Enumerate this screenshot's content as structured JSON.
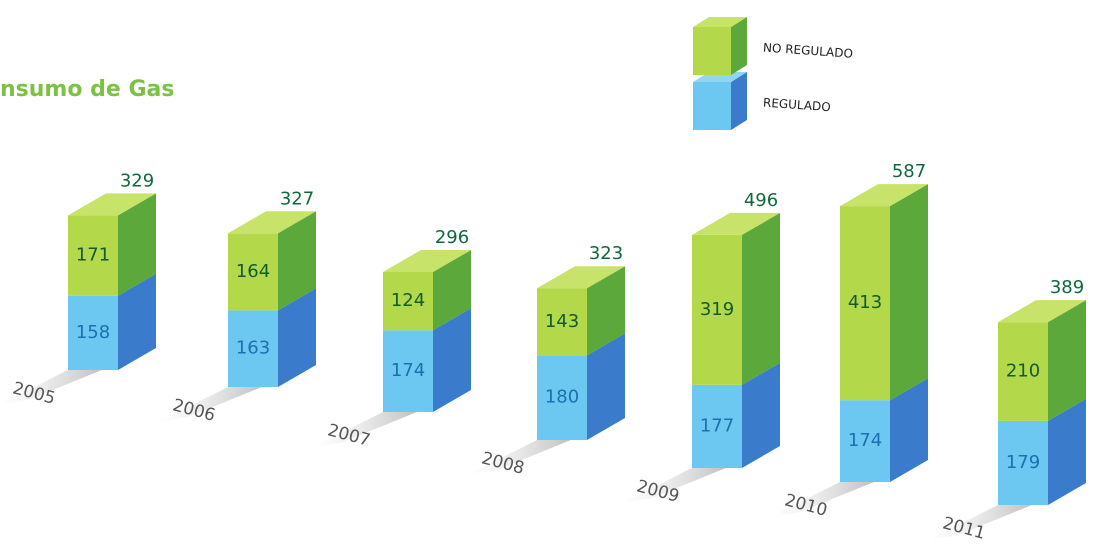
{
  "chart_data": {
    "type": "bar3d_stacked",
    "title": "nsumo de Gas",
    "categories": [
      "2005",
      "2006",
      "2007",
      "2008",
      "2009",
      "2010",
      "2011"
    ],
    "series": [
      {
        "name": "REGULADO",
        "color": "#6cc8f0",
        "values": [
          158,
          163,
          174,
          180,
          177,
          174,
          179
        ]
      },
      {
        "name": "NO REGULADO",
        "color": "#b3d84a",
        "values": [
          171,
          164,
          124,
          143,
          319,
          413,
          210
        ]
      }
    ],
    "totals": [
      329,
      327,
      296,
      323,
      496,
      587,
      389
    ]
  }
}
